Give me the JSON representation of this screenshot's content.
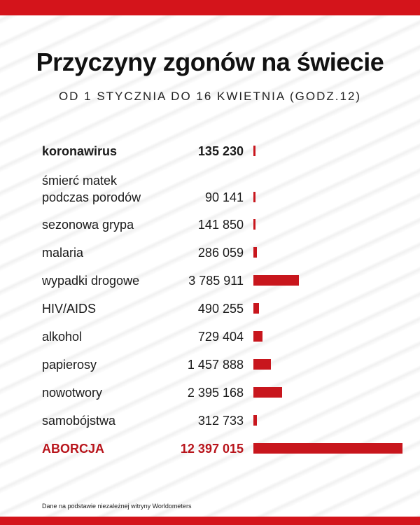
{
  "header": {
    "title": "Przyczyny zgonów na świecie",
    "subtitle": "OD 1 STYCZNIA DO 16 KWIETNIA (GODZ.12)"
  },
  "chart_data": {
    "type": "bar",
    "orientation": "horizontal",
    "title": "Przyczyny zgonów na świecie",
    "subtitle": "OD 1 STYCZNIA DO 16 KWIETNIA (GODZ.12)",
    "bar_color": "#c8161d",
    "accent_color": "#b8141b",
    "xlim": [
      0,
      12397015
    ],
    "rows": [
      {
        "lines": [
          "koronawirus"
        ],
        "value": 135230,
        "display": "135 230",
        "style": "bold"
      },
      {
        "lines": [
          "śmierć matek",
          "podczas porodów"
        ],
        "value": 90141,
        "display": "90 141",
        "style": "normal"
      },
      {
        "lines": [
          "sezonowa grypa"
        ],
        "value": 141850,
        "display": "141 850",
        "style": "normal"
      },
      {
        "lines": [
          "malaria"
        ],
        "value": 286059,
        "display": "286 059",
        "style": "normal"
      },
      {
        "lines": [
          "wypadki drogowe"
        ],
        "value": 3785911,
        "display": "3 785 911",
        "style": "normal"
      },
      {
        "lines": [
          "HIV/AIDS"
        ],
        "value": 490255,
        "display": "490 255",
        "style": "normal"
      },
      {
        "lines": [
          "alkohol"
        ],
        "value": 729404,
        "display": "729 404",
        "style": "normal"
      },
      {
        "lines": [
          "papierosy"
        ],
        "value": 1457888,
        "display": "1 457 888",
        "style": "normal"
      },
      {
        "lines": [
          "nowotwory"
        ],
        "value": 2395168,
        "display": "2 395 168",
        "style": "normal"
      },
      {
        "lines": [
          "samobójstwa"
        ],
        "value": 312733,
        "display": "312 733",
        "style": "normal"
      },
      {
        "lines": [
          "ABORCJA"
        ],
        "value": 12397015,
        "display": "12 397 015",
        "style": "accent"
      }
    ]
  },
  "footer": {
    "source": "Dane na podstawie niezależnej witryny Worldometers"
  }
}
